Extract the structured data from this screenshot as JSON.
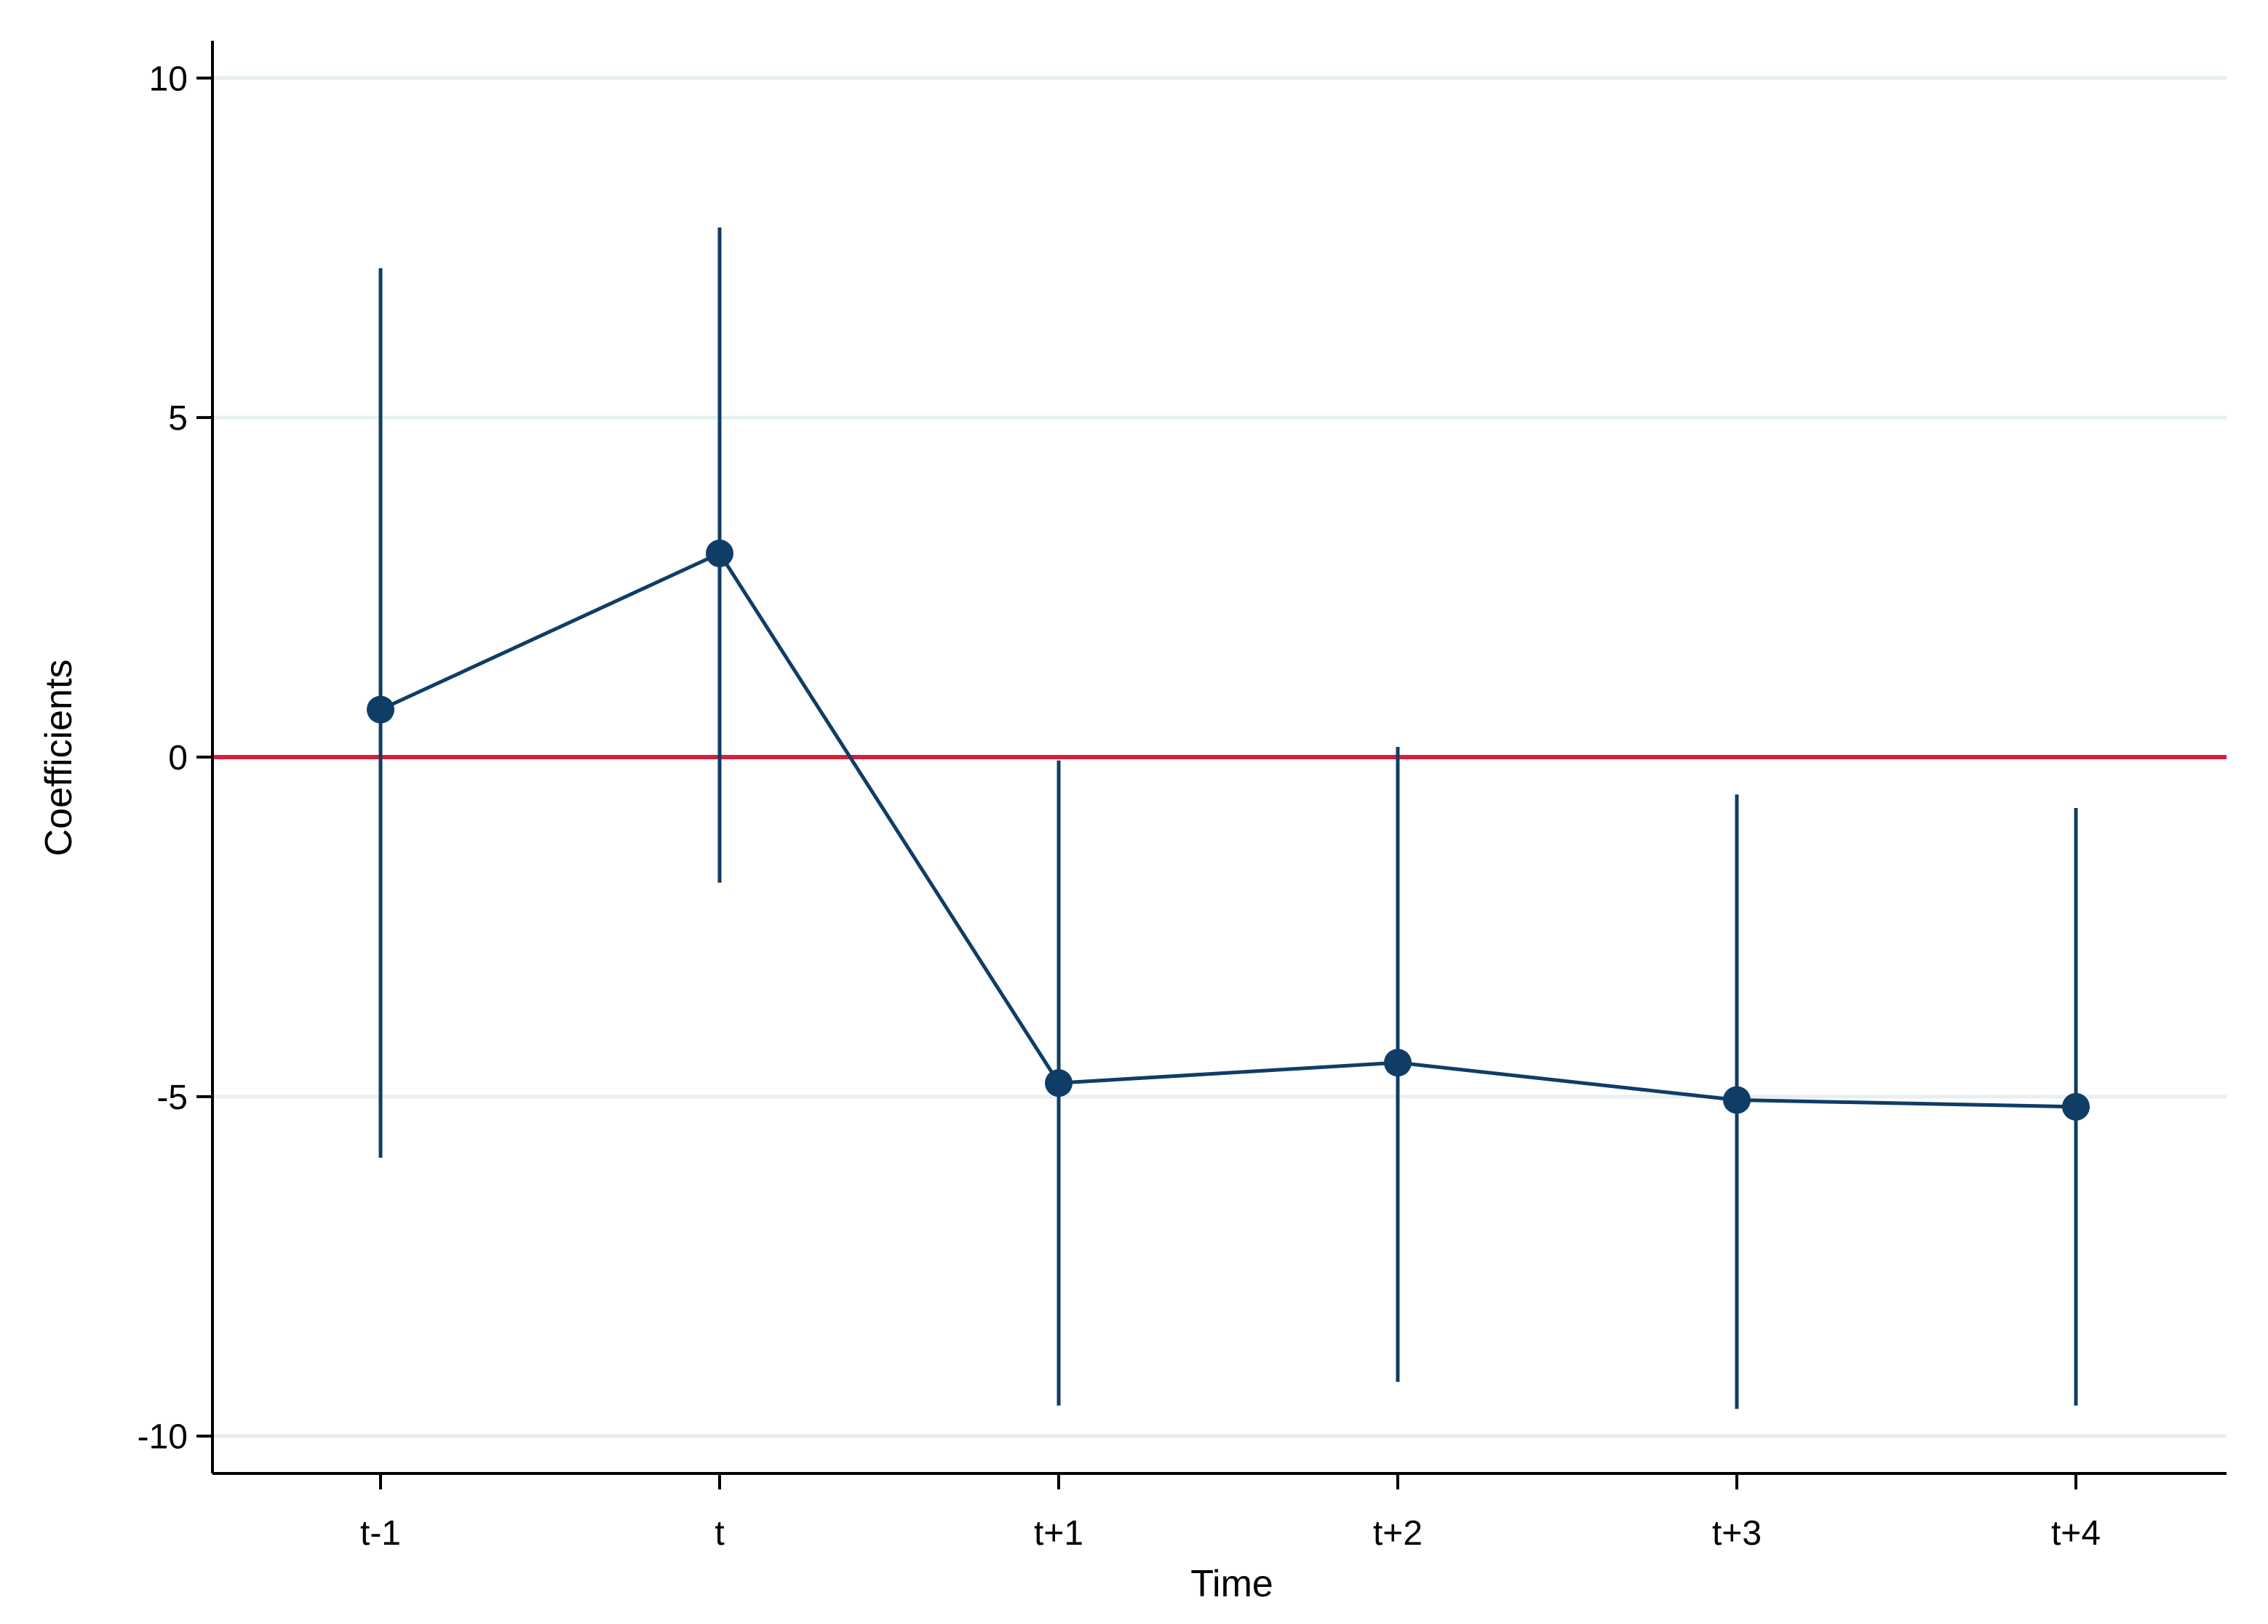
{
  "chart_data": {
    "type": "scatter",
    "title": "",
    "xlabel": "Time",
    "ylabel": "Coefficients",
    "categories": [
      "t-1",
      "t",
      "t+1",
      "t+2",
      "t+3",
      "t+4"
    ],
    "series": [
      {
        "values": [
          0.7,
          3.0,
          -4.8,
          -4.5,
          -5.05,
          -5.15
        ],
        "ci_low": [
          -5.9,
          -1.85,
          -9.55,
          -9.2,
          -9.6,
          -9.55
        ],
        "ci_high": [
          7.2,
          7.8,
          -0.05,
          0.15,
          -0.55,
          -0.75
        ],
        "connected": true,
        "color": "#0f3d66"
      }
    ],
    "reference_line": {
      "y": 0,
      "color": "#d61f3c"
    },
    "yticks": [
      10,
      5,
      0,
      -5,
      -10
    ],
    "ylim": [
      -10.55,
      10.55
    ],
    "grid": true,
    "grid_color": "#e6eff2",
    "legend": "none"
  }
}
